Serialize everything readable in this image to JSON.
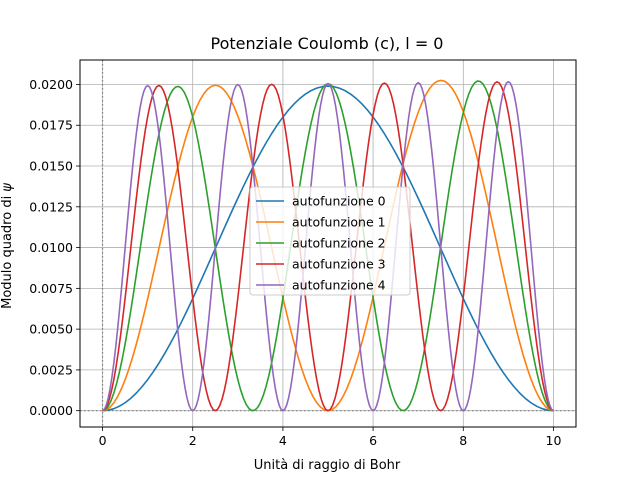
{
  "chart_data": {
    "type": "line",
    "title": "Potenziale Coulomb (c), l = 0",
    "xlabel": "Unità di raggio di Bohr",
    "ylabel_prefix": "Modulo quadro di ",
    "ylabel_symbol": "ψ",
    "xlim": [
      -0.5,
      10.5
    ],
    "ylim": [
      -0.001,
      0.0215
    ],
    "x_ticks": [
      0,
      2,
      4,
      6,
      8,
      10
    ],
    "x_tick_labels": [
      "0",
      "2",
      "4",
      "6",
      "8",
      "10"
    ],
    "y_ticks": [
      0.0,
      0.0025,
      0.005,
      0.0075,
      0.01,
      0.0125,
      0.015,
      0.0175,
      0.02
    ],
    "y_tick_labels": [
      "0.0000",
      "0.0025",
      "0.0050",
      "0.0075",
      "0.0100",
      "0.0125",
      "0.0150",
      "0.0175",
      "0.0200"
    ],
    "grid": true,
    "reference_lines": {
      "x": 0,
      "y": 0,
      "style": "dotted",
      "color": "#808080"
    },
    "legend_position": "center",
    "domain": [
      0,
      10
    ],
    "series": [
      {
        "name": "autofunzione 0",
        "color": "#1f77b4",
        "mode": 1,
        "peak": 0.0199
      },
      {
        "name": "autofunzione 1",
        "color": "#ff7f0e",
        "mode": 2,
        "peak_left": 0.0198,
        "peak_right": 0.0204
      },
      {
        "name": "autofunzione 2",
        "color": "#2ca02c",
        "mode": 3,
        "peak_left": 0.0198,
        "peak_right": 0.0203
      },
      {
        "name": "autofunzione 3",
        "color": "#d62728",
        "mode": 4,
        "peak_left": 0.0199,
        "peak_right": 0.0202
      },
      {
        "name": "autofunzione 4",
        "color": "#9467bd",
        "mode": 5,
        "peak_left": 0.0199,
        "peak_right": 0.0202
      }
    ]
  }
}
